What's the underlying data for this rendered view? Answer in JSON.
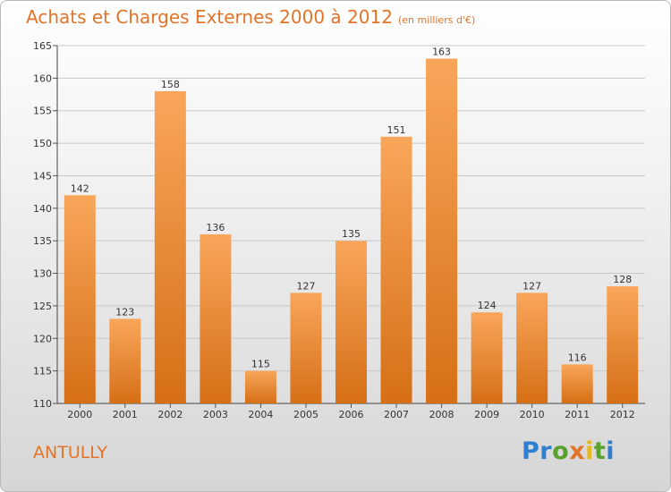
{
  "header": {
    "title": "Achats et Charges Externes 2000 à 2012",
    "subtitle": "(en milliers d'€)"
  },
  "footer": {
    "commune": "ANTULLY",
    "brand_letters": [
      {
        "ch": "P",
        "color": "#2e7fcf"
      },
      {
        "ch": "r",
        "color": "#2e7fcf"
      },
      {
        "ch": "o",
        "color": "#5aa02c"
      },
      {
        "ch": "x",
        "color": "#e2742a"
      },
      {
        "ch": "i",
        "color": "#e8b820"
      },
      {
        "ch": "t",
        "color": "#5aa02c"
      },
      {
        "ch": "i",
        "color": "#2e7fcf"
      }
    ]
  },
  "colors": {
    "bar_light": "#f9a65a",
    "bar_dark": "#d66f16",
    "accent": "#e2742a",
    "grid": "#c8c8c8"
  },
  "chart_data": {
    "type": "bar",
    "title": "Achats et Charges Externes 2000 à 2012",
    "subtitle": "(en milliers d'€)",
    "categories": [
      "2000",
      "2001",
      "2002",
      "2003",
      "2004",
      "2005",
      "2006",
      "2007",
      "2008",
      "2009",
      "2010",
      "2011",
      "2012"
    ],
    "values": [
      142,
      123,
      158,
      136,
      115,
      127,
      135,
      151,
      163,
      124,
      127,
      116,
      128
    ],
    "ylim": [
      110,
      165
    ],
    "yticks": [
      110,
      115,
      120,
      125,
      130,
      135,
      140,
      145,
      150,
      155,
      160,
      165
    ],
    "grid": true,
    "data_labels": true
  }
}
